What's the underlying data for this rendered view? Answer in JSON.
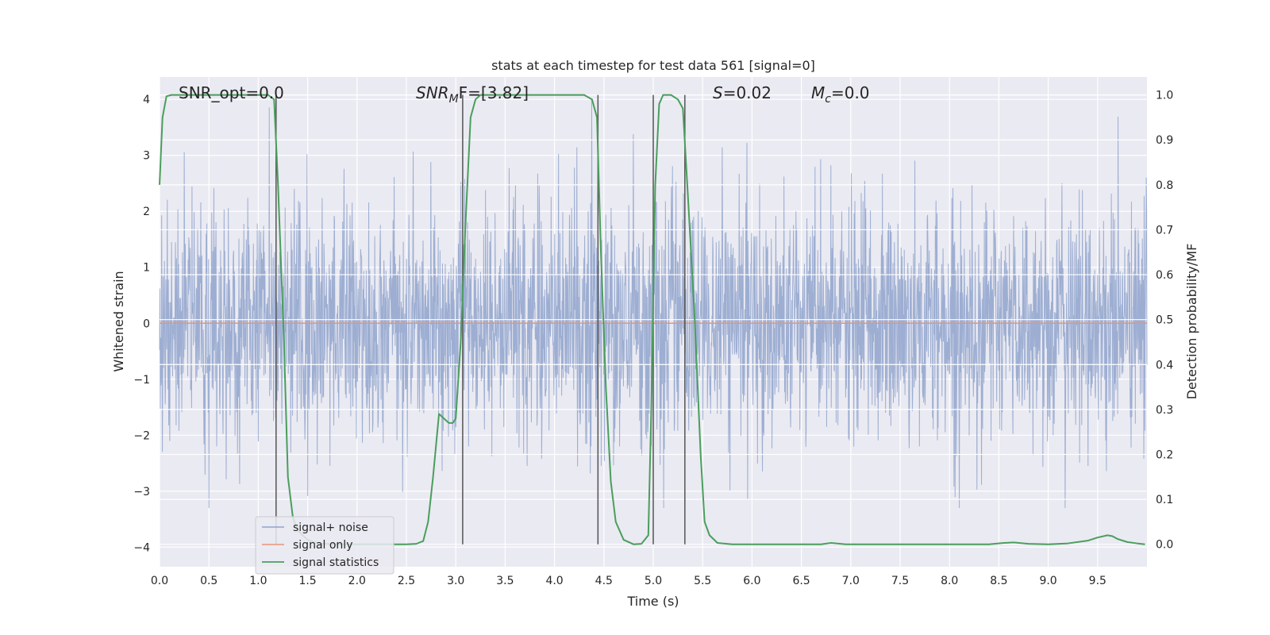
{
  "chart_data": {
    "type": "line",
    "title": "stats at each timestep for test data 561 [signal=0]",
    "xlabel": "Time (s)",
    "ylabel": "Whitened strain",
    "ylabel_right": "Detection probability/MF",
    "xlim": [
      0.0,
      10.0
    ],
    "ylim": [
      -4.35,
      4.4
    ],
    "ylim_right": [
      -0.05,
      1.04
    ],
    "x_ticks": [
      "0.0",
      "0.5",
      "1.0",
      "1.5",
      "2.0",
      "2.5",
      "3.0",
      "3.5",
      "4.0",
      "4.5",
      "5.0",
      "5.5",
      "6.0",
      "6.5",
      "7.0",
      "7.5",
      "8.0",
      "8.5",
      "9.0",
      "9.5"
    ],
    "y_ticks": [
      "−4",
      "−3",
      "−2",
      "−1",
      "0",
      "1",
      "2",
      "3",
      "4"
    ],
    "y_ticks_right": [
      "0.0",
      "0.1",
      "0.2",
      "0.3",
      "0.4",
      "0.5",
      "0.6",
      "0.7",
      "0.8",
      "0.9",
      "1.0"
    ],
    "grid": true,
    "annotations": {
      "snr_opt": "SNR_opt=0.0",
      "snr_mf_main": "SNR",
      "snr_mf_sub": "M",
      "snr_mf_rest": "F=[3.82]",
      "s_var": "S",
      "s_val": "=0.02",
      "mc_var": "M",
      "mc_sub": "c",
      "mc_val": "=0.0"
    },
    "legend": {
      "placement": "lower-left",
      "entries": [
        "signal+ noise",
        "signal only",
        "signal statistics"
      ]
    },
    "vertical_lines_x": [
      1.18,
      3.07,
      4.44,
      5.0,
      5.32
    ],
    "series": [
      {
        "name": "signal+ noise",
        "color": "#8fa3cc",
        "kind": "noise",
        "noise_amplitude_range": [
          -3.3,
          4.0
        ]
      },
      {
        "name": "signal only",
        "color": "#e8957a",
        "x": [
          0.0,
          10.0
        ],
        "y": [
          0.0,
          0.0
        ]
      },
      {
        "name": "signal statistics",
        "color": "#4a9e5c",
        "axis": "right",
        "x": [
          0.0,
          0.03,
          0.07,
          0.12,
          0.2,
          0.5,
          0.8,
          1.0,
          1.1,
          1.16,
          1.2,
          1.26,
          1.3,
          1.35,
          1.4,
          1.5,
          1.6,
          1.8,
          2.0,
          2.3,
          2.5,
          2.6,
          2.67,
          2.72,
          2.77,
          2.83,
          2.88,
          2.93,
          2.97,
          3.0,
          3.05,
          3.1,
          3.15,
          3.2,
          3.25,
          3.3,
          3.5,
          3.8,
          4.1,
          4.3,
          4.38,
          4.43,
          4.47,
          4.52,
          4.57,
          4.62,
          4.7,
          4.8,
          4.88,
          4.95,
          4.98,
          5.02,
          5.06,
          5.1,
          5.18,
          5.25,
          5.3,
          5.35,
          5.42,
          5.48,
          5.52,
          5.57,
          5.65,
          5.8,
          6.0,
          6.5,
          6.7,
          6.8,
          6.95,
          7.3,
          7.8,
          8.2,
          8.4,
          8.55,
          8.65,
          8.8,
          9.0,
          9.2,
          9.4,
          9.5,
          9.6,
          9.65,
          9.7,
          9.8,
          9.9,
          9.98
        ],
        "y": [
          0.8,
          0.95,
          0.997,
          1.0,
          1.0,
          1.0,
          1.0,
          1.0,
          1.0,
          0.99,
          0.8,
          0.45,
          0.15,
          0.06,
          0.03,
          0.01,
          0.002,
          0.0,
          0.0,
          0.0,
          0.0,
          0.001,
          0.007,
          0.05,
          0.15,
          0.29,
          0.28,
          0.27,
          0.27,
          0.28,
          0.45,
          0.72,
          0.95,
          0.99,
          1.0,
          1.0,
          1.0,
          1.0,
          1.0,
          1.0,
          0.99,
          0.95,
          0.65,
          0.35,
          0.14,
          0.05,
          0.01,
          0.0,
          0.001,
          0.02,
          0.3,
          0.8,
          0.98,
          1.0,
          1.0,
          0.99,
          0.97,
          0.78,
          0.5,
          0.2,
          0.05,
          0.02,
          0.003,
          0.0,
          0.0,
          0.0,
          0.0,
          0.003,
          0.0,
          0.0,
          0.0,
          0.0,
          0.0,
          0.003,
          0.004,
          0.001,
          0.0,
          0.002,
          0.008,
          0.015,
          0.02,
          0.018,
          0.012,
          0.005,
          0.002,
          0.0
        ]
      }
    ]
  }
}
